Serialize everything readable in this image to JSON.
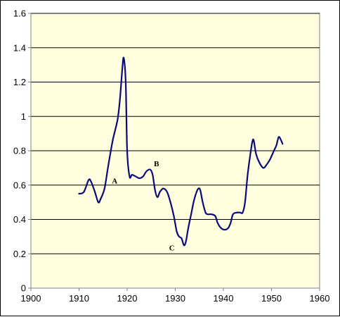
{
  "chart_data": {
    "type": "line",
    "title": "",
    "xlabel": "",
    "ylabel": "",
    "xlim": [
      1900,
      1960
    ],
    "ylim": [
      0,
      1.6
    ],
    "x_ticks": [
      1900,
      1910,
      1920,
      1930,
      1940,
      1950,
      1960
    ],
    "y_ticks": [
      0,
      0.2,
      0.4,
      0.6,
      0.8,
      1,
      1.2,
      1.4,
      1.6
    ],
    "x_tick_labels": [
      "1900",
      "1910",
      "1920",
      "1930",
      "1940",
      "1950",
      "1960"
    ],
    "y_tick_labels": [
      "0",
      "0.2",
      "0.4",
      "0.6",
      "0.8",
      "1",
      "1.2",
      "1.4",
      "1.6"
    ],
    "grid": "horizontal",
    "legend": "none",
    "colors": {
      "plot_background": "#ffffe0",
      "line": "#0a0a7a",
      "grid": "#000000"
    },
    "series": [
      {
        "x": [
          1910,
          1911,
          1912,
          1912.5,
          1913.3,
          1914,
          1914.5,
          1915.3,
          1916,
          1917,
          1918,
          1918.5,
          1919,
          1919.3,
          1919.7,
          1920,
          1920.5,
          1921,
          1921.8,
          1922.5,
          1923.3,
          1924,
          1924.8,
          1925.3,
          1925.8,
          1926.3,
          1926.8,
          1927.5,
          1928.3,
          1929,
          1929.7,
          1930.3,
          1930.8,
          1931.3,
          1931.8,
          1932.2,
          1932.7,
          1933.3,
          1933.8,
          1934.3,
          1934.8,
          1935.2,
          1935.7,
          1936.3,
          1936.8,
          1937.5,
          1938.3,
          1938.8,
          1939.5,
          1940.3,
          1941,
          1941.5,
          1942,
          1942.8,
          1943.5,
          1944,
          1944.5,
          1945,
          1945.5,
          1946,
          1946.3,
          1946.8,
          1947.5,
          1948.3,
          1949,
          1949.7,
          1950.5,
          1951,
          1951.5,
          1952,
          1952.3
        ],
        "y": [
          0.55,
          0.56,
          0.63,
          0.62,
          0.56,
          0.5,
          0.52,
          0.58,
          0.7,
          0.86,
          0.98,
          1.1,
          1.28,
          1.34,
          1.2,
          0.8,
          0.65,
          0.66,
          0.65,
          0.64,
          0.65,
          0.68,
          0.69,
          0.66,
          0.57,
          0.53,
          0.56,
          0.58,
          0.56,
          0.5,
          0.42,
          0.33,
          0.3,
          0.29,
          0.25,
          0.27,
          0.35,
          0.43,
          0.5,
          0.55,
          0.58,
          0.57,
          0.5,
          0.44,
          0.43,
          0.43,
          0.42,
          0.38,
          0.35,
          0.34,
          0.35,
          0.38,
          0.43,
          0.44,
          0.44,
          0.44,
          0.5,
          0.65,
          0.76,
          0.85,
          0.86,
          0.78,
          0.73,
          0.7,
          0.72,
          0.75,
          0.8,
          0.83,
          0.88,
          0.86,
          0.84
        ]
      }
    ],
    "annotations": [
      {
        "text": "A",
        "x": 1917.4,
        "y": 0.61
      },
      {
        "text": "B",
        "x": 1926.1,
        "y": 0.71
      },
      {
        "text": "C",
        "x": 1929.3,
        "y": 0.22
      }
    ]
  }
}
